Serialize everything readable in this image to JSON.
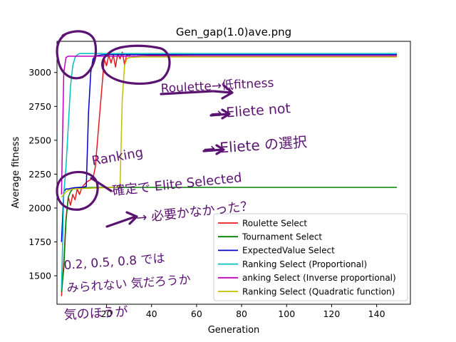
{
  "chart_data": {
    "type": "line",
    "title": "Gen_gap(1.0)ave.png",
    "xlabel": "Generation",
    "ylabel": "Average fitness",
    "xlim": [
      -2,
      155
    ],
    "ylim": [
      1290,
      3230
    ],
    "xticks": [
      20,
      40,
      60,
      80,
      100,
      120,
      140
    ],
    "yticks": [
      1500,
      1750,
      2000,
      2250,
      2500,
      2750,
      3000
    ],
    "grid": false,
    "legend_position": "lower-right",
    "series": [
      {
        "name": "Roulette Select",
        "color": "#e6191b",
        "x": [
          0,
          1,
          2,
          3,
          4,
          5,
          6,
          7,
          8,
          9,
          10,
          11,
          12,
          13,
          14,
          15,
          16,
          17,
          18,
          19,
          20,
          21,
          22,
          23,
          24,
          25,
          26,
          27,
          28,
          29,
          30,
          31,
          32,
          33,
          34,
          35,
          40,
          60,
          80,
          100,
          120,
          140,
          149
        ],
        "y": [
          1350,
          1600,
          1920,
          2080,
          2020,
          2100,
          2060,
          2140,
          2100,
          2150,
          2170,
          2190,
          2200,
          2210,
          2220,
          2300,
          2500,
          2700,
          2900,
          3100,
          3050,
          3130,
          3070,
          3130,
          3040,
          3140,
          3100,
          3150,
          3060,
          3130,
          3120,
          3140,
          3130,
          3135,
          3130,
          3130,
          3128,
          3130,
          3130,
          3130,
          3130,
          3130,
          3130
        ]
      },
      {
        "name": "Tournament Select",
        "color": "#008000",
        "x": [
          0,
          1,
          2,
          3,
          4,
          5,
          6,
          8,
          10,
          20,
          40,
          60,
          80,
          100,
          120,
          140,
          149
        ],
        "y": [
          1380,
          1550,
          1900,
          2080,
          2120,
          2140,
          2150,
          2150,
          2150,
          2152,
          2152,
          2152,
          2152,
          2152,
          2152,
          2152,
          2152
        ]
      },
      {
        "name": "ExpectedValue Select",
        "color": "#0000cc",
        "x": [
          0,
          1,
          2,
          3,
          4,
          5,
          6,
          8,
          10,
          11,
          12,
          13,
          14,
          15,
          16,
          18,
          20,
          40,
          60,
          80,
          100,
          120,
          140,
          149
        ],
        "y": [
          1750,
          2120,
          2140,
          2140,
          2145,
          2148,
          2150,
          2152,
          2155,
          2160,
          2700,
          3000,
          3100,
          3120,
          3125,
          3130,
          3132,
          3132,
          3132,
          3132,
          3132,
          3132,
          3132,
          3132
        ]
      },
      {
        "name": "Ranking Select (Proportional)",
        "color": "#00bfbf",
        "x": [
          0,
          1,
          2,
          3,
          4,
          5,
          6,
          7,
          8,
          10,
          15,
          20,
          40,
          60,
          80,
          100,
          120,
          140,
          149
        ],
        "y": [
          1400,
          2100,
          2300,
          2600,
          2900,
          3050,
          3110,
          3130,
          3140,
          3140,
          3140,
          3140,
          3140,
          3140,
          3140,
          3140,
          3140,
          3140,
          3140
        ]
      },
      {
        "name": "anking Select (Inverse proportional)",
        "color": "#bf00bf",
        "x": [
          0,
          1,
          2,
          3,
          4,
          5,
          10,
          20,
          40,
          60,
          80,
          100,
          120,
          140,
          149
        ],
        "y": [
          2100,
          3000,
          3110,
          3120,
          3120,
          3120,
          3120,
          3120,
          3120,
          3120,
          3120,
          3120,
          3120,
          3120,
          3120
        ]
      },
      {
        "name": "Ranking Select (Quadratic function)",
        "color": "#bfbf00",
        "x": [
          0,
          1,
          2,
          3,
          4,
          5,
          10,
          20,
          25,
          26,
          27,
          28,
          29,
          30,
          35,
          40,
          60,
          80,
          100,
          120,
          140,
          149
        ],
        "y": [
          2080,
          2100,
          2120,
          2130,
          2135,
          2140,
          2145,
          2150,
          2155,
          2160,
          2800,
          3050,
          3100,
          3110,
          3115,
          3115,
          3115,
          3115,
          3115,
          3115,
          3115,
          3115
        ]
      }
    ]
  },
  "handwriting": {
    "roulette_note": "Roulette→低fitness",
    "eliete_not": "→ Eliete not",
    "eliete_choice": "→ Eliete の選択",
    "ranking_note": "Ranking",
    "confirm_note": "確定で Elite Selected",
    "necessity_note": "→ 必要かなかった？",
    "bottom_note_1": "0.2, 0.5, 0.8 では",
    "bottom_note_2": "みられない 気だろうか",
    "bottom_note_3": "気のほうが"
  }
}
